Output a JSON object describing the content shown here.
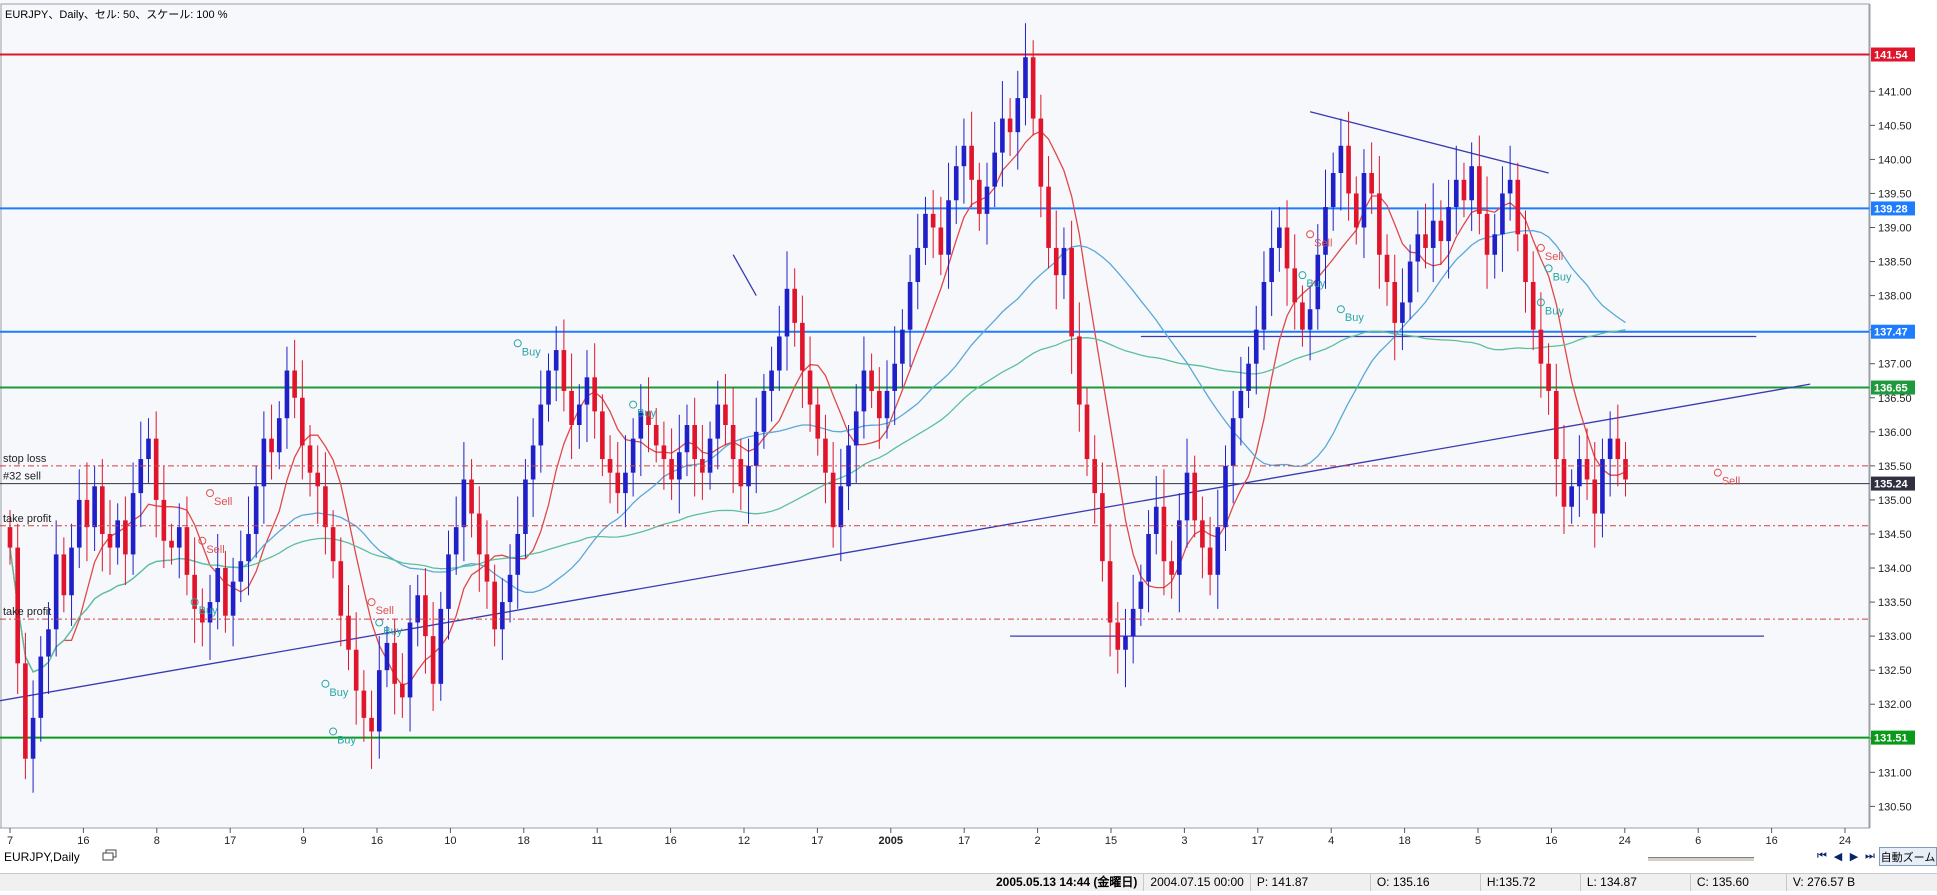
{
  "chart_title": "EURJPY、Daily、セル: 50、スケール: 100 %",
  "tab_label": "EURJPY,Daily",
  "zoom_label": "自動ズーム",
  "nav": {
    "first": "⏮",
    "prev": "◀",
    "next": "▶",
    "last": "⏭"
  },
  "status": {
    "datetime": "2005.05.13 14:44 (金曜日)",
    "cursor_date": "2004.07.15 00:00",
    "price_p": "P: 141.87",
    "open": "O: 135.16",
    "high": "H:135.72",
    "low": "L: 134.87",
    "close": "C: 135.60",
    "volume": "V: 276.57 B"
  },
  "chart_data": {
    "type": "candlestick",
    "symbol": "EURJPY",
    "timeframe": "Daily",
    "ylim": [
      130.3,
      141.9
    ],
    "y_ticks": [
      "130.50",
      "131.00",
      "131.50",
      "132.00",
      "132.50",
      "133.00",
      "133.50",
      "134.00",
      "134.50",
      "135.00",
      "135.50",
      "136.00",
      "136.50",
      "137.00",
      "137.50",
      "138.00",
      "138.50",
      "139.00",
      "139.50",
      "140.00",
      "140.50",
      "141.00"
    ],
    "x_ticks": [
      "7",
      "16",
      "8",
      "17",
      "9",
      "16",
      "10",
      "18",
      "11",
      "16",
      "12",
      "17",
      "2005",
      "17",
      "2",
      "15",
      "3",
      "17",
      "4",
      "18",
      "5",
      "16",
      "24",
      "6",
      "16",
      "24"
    ],
    "price_labels": [
      {
        "label": "141.54",
        "value": 141.54,
        "color": "#e0142a"
      },
      {
        "label": "139.28",
        "value": 139.28,
        "color": "#1e7cff"
      },
      {
        "label": "137.47",
        "value": 137.47,
        "color": "#1e7cff"
      },
      {
        "label": "136.65",
        "value": 136.65,
        "color": "#1e9a3c"
      },
      {
        "label": "135.24",
        "value": 135.24,
        "color": "#303040"
      },
      {
        "label": "131.51",
        "value": 131.51,
        "color": "#0a9a1a"
      }
    ],
    "order_labels": [
      {
        "label": "stop loss",
        "value": 135.5
      },
      {
        "label": "#32 sell",
        "value": 135.24
      },
      {
        "label": "take profit",
        "value": 134.62
      },
      {
        "label": "take profit",
        "value": 133.25
      }
    ],
    "signals": [
      {
        "text": "Buy",
        "type": "buy",
        "bar": 24,
        "price": 133.5
      },
      {
        "text": "Sell",
        "type": "sell",
        "bar": 26,
        "price": 135.1
      },
      {
        "text": "Sell",
        "type": "sell",
        "bar": 25,
        "price": 134.4
      },
      {
        "text": "Buy",
        "type": "buy",
        "bar": 41,
        "price": 132.3
      },
      {
        "text": "Buy",
        "type": "buy",
        "bar": 42,
        "price": 131.6
      },
      {
        "text": "Sell",
        "type": "sell",
        "bar": 47,
        "price": 133.5
      },
      {
        "text": "Buy",
        "type": "buy",
        "bar": 48,
        "price": 133.2
      },
      {
        "text": "Buy",
        "type": "buy",
        "bar": 66,
        "price": 137.3
      },
      {
        "text": "Buy",
        "type": "buy",
        "bar": 81,
        "price": 136.4
      },
      {
        "text": "Sell",
        "type": "sell",
        "bar": 169,
        "price": 138.9
      },
      {
        "text": "Buy",
        "type": "buy",
        "bar": 168,
        "price": 138.3
      },
      {
        "text": "Buy",
        "type": "buy",
        "bar": 173,
        "price": 137.8
      },
      {
        "text": "Sell",
        "type": "sell",
        "bar": 199,
        "price": 138.7
      },
      {
        "text": "Buy",
        "type": "buy",
        "bar": 200,
        "price": 138.4
      },
      {
        "text": "Buy",
        "type": "buy",
        "bar": 199,
        "price": 137.9
      },
      {
        "text": "Sell",
        "type": "sell",
        "bar": 222,
        "price": 135.4
      }
    ],
    "closes": [
      134.3,
      132.6,
      131.2,
      131.8,
      132.7,
      133.1,
      134.2,
      133.6,
      134.3,
      135.0,
      134.6,
      135.2,
      134.5,
      134.3,
      134.7,
      134.2,
      135.1,
      135.6,
      135.9,
      135.0,
      134.4,
      134.3,
      134.6,
      133.9,
      133.4,
      133.2,
      133.5,
      134.0,
      133.3,
      133.8,
      134.1,
      134.5,
      135.2,
      135.9,
      135.7,
      136.2,
      136.9,
      136.5,
      135.8,
      135.4,
      135.2,
      134.6,
      134.1,
      133.3,
      132.8,
      132.2,
      131.8,
      131.6,
      132.5,
      132.9,
      132.3,
      132.1,
      133.2,
      133.6,
      133.0,
      132.3,
      133.4,
      134.2,
      134.6,
      135.3,
      134.8,
      134.2,
      133.8,
      133.1,
      133.5,
      133.9,
      134.5,
      135.3,
      135.8,
      136.4,
      136.9,
      137.2,
      136.6,
      136.1,
      136.4,
      136.8,
      136.3,
      135.6,
      135.4,
      135.1,
      135.4,
      135.9,
      136.3,
      136.1,
      135.8,
      135.6,
      135.3,
      135.7,
      136.1,
      135.6,
      135.4,
      135.9,
      136.4,
      136.1,
      135.6,
      135.2,
      135.5,
      136.0,
      136.6,
      136.9,
      137.4,
      138.1,
      137.6,
      136.9,
      136.4,
      135.9,
      135.4,
      134.6,
      135.2,
      135.8,
      136.3,
      136.9,
      136.6,
      136.2,
      136.6,
      137.0,
      137.5,
      138.2,
      138.7,
      139.2,
      139.0,
      138.6,
      139.4,
      139.9,
      140.2,
      139.7,
      139.2,
      139.6,
      140.1,
      140.6,
      140.4,
      140.9,
      141.5,
      140.6,
      139.6,
      138.7,
      138.3,
      138.7,
      137.4,
      136.4,
      135.6,
      135.1,
      134.1,
      133.2,
      132.8,
      133.0,
      133.4,
      133.8,
      134.5,
      134.9,
      134.1,
      133.9,
      134.7,
      135.4,
      134.7,
      134.3,
      133.9,
      134.6,
      135.5,
      136.2,
      136.6,
      137.0,
      137.5,
      138.2,
      138.7,
      139.0,
      138.4,
      137.9,
      137.5,
      137.8,
      138.6,
      139.3,
      139.8,
      140.2,
      139.5,
      139.0,
      139.8,
      139.5,
      138.6,
      138.2,
      137.6,
      137.9,
      138.5,
      138.9,
      138.7,
      139.1,
      138.8,
      139.3,
      139.7,
      139.4,
      139.9,
      139.2,
      138.6,
      138.9,
      139.5,
      139.7,
      138.9,
      138.2,
      137.5,
      137.0,
      136.6,
      135.6,
      134.9,
      135.2,
      135.6,
      135.3,
      134.8,
      135.6,
      135.9,
      135.6,
      135.3
    ]
  }
}
